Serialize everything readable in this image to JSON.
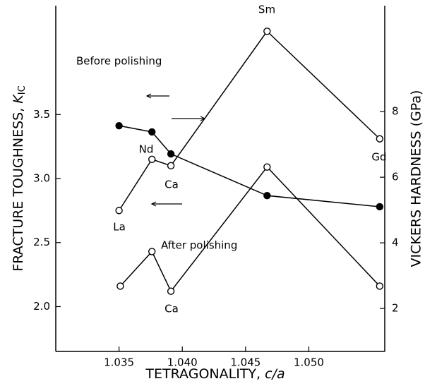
{
  "chart_data": {
    "type": "line",
    "xlabel": [
      "TETRAGONALITY, ",
      "c/a"
    ],
    "ylabel": [
      "FRACTURE TOUGHNESS, ",
      "K",
      "IC"
    ],
    "y2label": "VICKERS HARDNESS (GPa)",
    "xlim": [
      1.03,
      1.056
    ],
    "xticks": [
      1.035,
      {
        "value": 1.04,
        "label": "1.040"
      },
      1.045,
      {
        "value": 1.05,
        "label": "1.050"
      }
    ],
    "ylim": [
      1.65,
      4.35
    ],
    "yticks": [
      {
        "value": 2,
        "label": "2.0"
      },
      2.5,
      {
        "value": 3,
        "label": "3.0"
      },
      3.5
    ],
    "y2lim": [
      0.69,
      11.23
    ],
    "y2ticks": [
      2,
      4,
      6,
      8
    ],
    "color": "#000000",
    "series": [
      {
        "marker": "open",
        "x": [
          1.035,
          1.0376,
          1.0391,
          1.0467,
          1.0556
        ],
        "values": [
          2.75,
          3.15,
          3.1,
          4.15,
          3.31
        ]
      },
      {
        "marker": "open",
        "x": [
          1.0351,
          1.0376,
          1.0391,
          1.0467,
          1.0556
        ],
        "values": [
          2.16,
          2.43,
          2.12,
          3.09,
          2.16
        ]
      },
      {
        "marker": "filled",
        "axis": "y2",
        "x": [
          1.035,
          1.0376,
          1.0391,
          1.0467,
          1.0556
        ],
        "values": [
          7.57,
          7.38,
          6.71,
          5.44,
          5.1
        ]
      }
    ],
    "annotations": [
      "Before polishing",
      "After polishing",
      "Sm",
      "Nd",
      "Ca",
      "La",
      "Gd",
      "Ca"
    ]
  }
}
